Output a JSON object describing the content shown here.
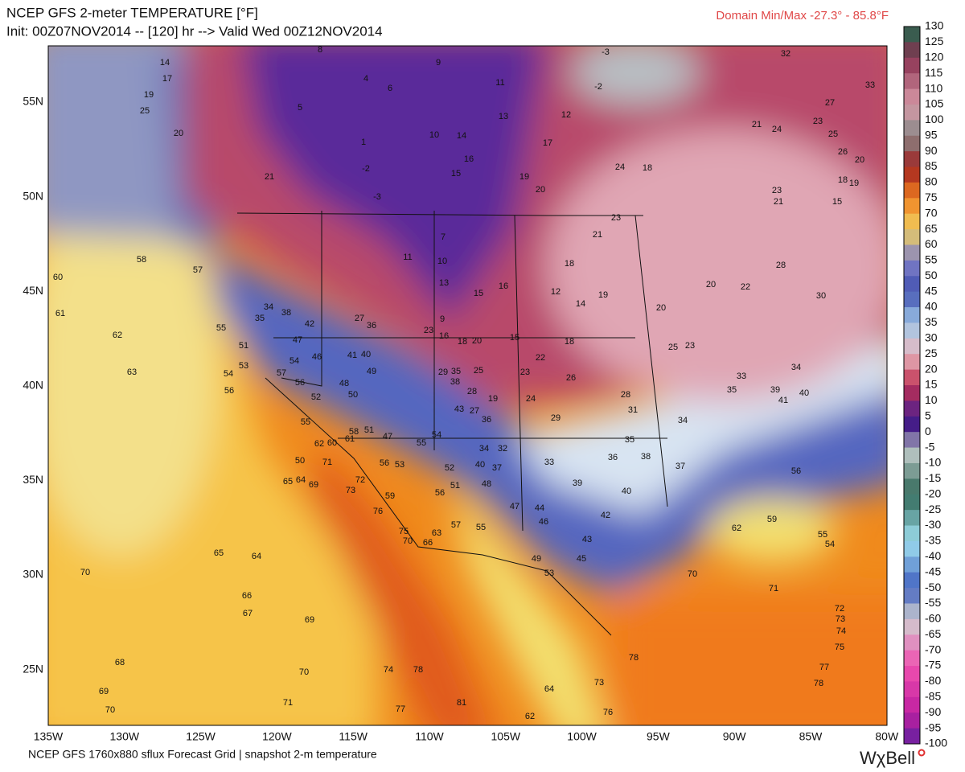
{
  "header": {
    "title": "NCEP GFS 2-meter TEMPERATURE [°F]",
    "subtitle": "Init: 00Z07NOV2014 -- [120] hr --> Valid Wed 00Z12NOV2014",
    "domain_minmax": "Domain Min/Max -27.3° - 85.8°F"
  },
  "colorbar": {
    "labels": [
      130,
      125,
      120,
      115,
      110,
      105,
      100,
      95,
      90,
      85,
      80,
      75,
      70,
      65,
      60,
      55,
      50,
      45,
      40,
      35,
      30,
      25,
      20,
      15,
      10,
      5,
      0,
      -5,
      -10,
      -15,
      -20,
      -25,
      -30,
      -35,
      -40,
      -45,
      -50,
      -55,
      -60,
      -65,
      -70,
      -75,
      -80,
      -85,
      -90,
      -95,
      -100
    ]
  },
  "map": {
    "lat_labels": [
      "55N",
      "50N",
      "45N",
      "40N",
      "35N",
      "30N",
      "25N"
    ],
    "lon_labels": [
      "135W",
      "130W",
      "125W",
      "120W",
      "115W",
      "110W",
      "105W",
      "100W",
      "95W",
      "90W",
      "85W",
      "80W"
    ],
    "stations": [
      58,
      57,
      60,
      61,
      62,
      63,
      56,
      55,
      51,
      53,
      54,
      65,
      64,
      69,
      73,
      72,
      76,
      59,
      75,
      70,
      66,
      63,
      57,
      55,
      47,
      46,
      44,
      49,
      53,
      45,
      43,
      42,
      40,
      39,
      33,
      36,
      38,
      37,
      35,
      34,
      31,
      28,
      29,
      24,
      19,
      26,
      22,
      18,
      12,
      14,
      19,
      20,
      25,
      23,
      33,
      35,
      39,
      41,
      40,
      34,
      56,
      62,
      59,
      55,
      54,
      70,
      71,
      72,
      73,
      74,
      75,
      77,
      78,
      78,
      76,
      73,
      64,
      62,
      81,
      77,
      74,
      78,
      70,
      71,
      68,
      69,
      70,
      70,
      65,
      64,
      66,
      67,
      69,
      32,
      33,
      27,
      21,
      24,
      23,
      25,
      26,
      20,
      18,
      19,
      15,
      23,
      21,
      20,
      22,
      28,
      30,
      -2,
      -3,
      1,
      5,
      4,
      6,
      8,
      9,
      11,
      13,
      10,
      14,
      16,
      15,
      19,
      20,
      17,
      12,
      23,
      21,
      18,
      -3,
      -2,
      24,
      18,
      10,
      11,
      7,
      13,
      15,
      16,
      9,
      23,
      16,
      18,
      20,
      15,
      38,
      34,
      35,
      42,
      47,
      46,
      41,
      40,
      36,
      27,
      49,
      48,
      50,
      52,
      56,
      57,
      54,
      55,
      61,
      60,
      62,
      71,
      50,
      58,
      51,
      47,
      55,
      54,
      56,
      53,
      52,
      51,
      56,
      48,
      40,
      37,
      34,
      32,
      36,
      43,
      27,
      38,
      28,
      29,
      35,
      25,
      23,
      14,
      17,
      19,
      25,
      20,
      21
    ]
  },
  "footer": {
    "source": "NCEP GFS 1760x880 sflux Forecast Grid | snapshot 2-m temperature",
    "logo": "WχBell"
  }
}
